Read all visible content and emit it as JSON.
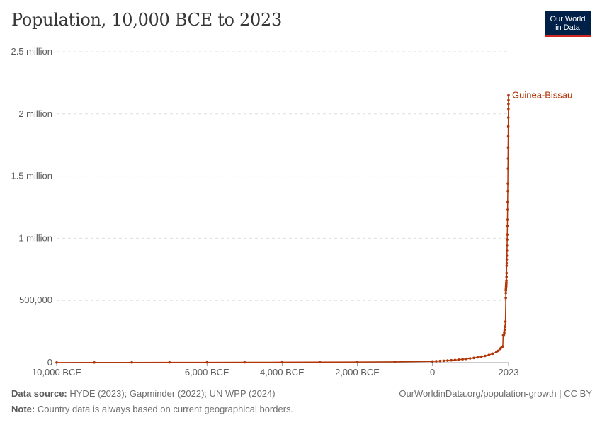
{
  "header": {
    "title": "Population, 10,000 BCE to 2023",
    "logo_line1": "Our World",
    "logo_line2": "in Data"
  },
  "footer": {
    "source_label": "Data source:",
    "source_text": "HYDE (2023); Gapminder (2022); UN WPP (2024)",
    "credit": "OurWorldinData.org/population-growth | CC BY",
    "note_label": "Note:",
    "note_text": "Country data is always based on current geographical borders."
  },
  "chart_data": {
    "type": "line",
    "title": "Population, 10,000 BCE to 2023",
    "xlabel": "",
    "ylabel": "",
    "xlim": [
      -10000,
      2023
    ],
    "ylim": [
      0,
      2500000
    ],
    "grid": true,
    "y_ticks": [
      {
        "value": 0,
        "label": "0"
      },
      {
        "value": 500000,
        "label": "500,000"
      },
      {
        "value": 1000000,
        "label": "1 million"
      },
      {
        "value": 1500000,
        "label": "1.5 million"
      },
      {
        "value": 2000000,
        "label": "2 million"
      },
      {
        "value": 2500000,
        "label": "2.5 million"
      }
    ],
    "x_ticks": [
      {
        "value": -10000,
        "label": "10,000 BCE"
      },
      {
        "value": -6000,
        "label": "6,000 BCE"
      },
      {
        "value": -4000,
        "label": "4,000 BCE"
      },
      {
        "value": -2000,
        "label": "2,000 BCE"
      },
      {
        "value": 0,
        "label": "0"
      },
      {
        "value": 2023,
        "label": "2023"
      }
    ],
    "series": [
      {
        "name": "Guinea-Bissau",
        "color": "#b13507",
        "points": [
          [
            -10000,
            1000
          ],
          [
            -9000,
            1200
          ],
          [
            -8000,
            1500
          ],
          [
            -7000,
            1800
          ],
          [
            -6000,
            2200
          ],
          [
            -5000,
            2700
          ],
          [
            -4000,
            3300
          ],
          [
            -3000,
            4000
          ],
          [
            -2000,
            5000
          ],
          [
            -1000,
            6500
          ],
          [
            0,
            10000
          ],
          [
            100,
            12000
          ],
          [
            200,
            13500
          ],
          [
            300,
            15000
          ],
          [
            400,
            17000
          ],
          [
            500,
            19000
          ],
          [
            600,
            21000
          ],
          [
            700,
            24000
          ],
          [
            800,
            27000
          ],
          [
            900,
            30000
          ],
          [
            1000,
            34000
          ],
          [
            1100,
            38000
          ],
          [
            1200,
            43000
          ],
          [
            1300,
            48000
          ],
          [
            1400,
            54000
          ],
          [
            1500,
            62000
          ],
          [
            1600,
            72000
          ],
          [
            1700,
            85000
          ],
          [
            1750,
            95000
          ],
          [
            1800,
            110000
          ],
          [
            1820,
            118000
          ],
          [
            1850,
            125000
          ],
          [
            1870,
            130000
          ],
          [
            1880,
            220000
          ],
          [
            1890,
            215000
          ],
          [
            1900,
            225000
          ],
          [
            1910,
            240000
          ],
          [
            1920,
            260000
          ],
          [
            1930,
            290000
          ],
          [
            1940,
            330000
          ],
          [
            1950,
            520000
          ],
          [
            1951,
            560000
          ],
          [
            1952,
            580000
          ],
          [
            1953,
            590000
          ],
          [
            1955,
            600000
          ],
          [
            1958,
            610000
          ],
          [
            1960,
            616000
          ],
          [
            1962,
            630000
          ],
          [
            1964,
            640000
          ],
          [
            1965,
            645000
          ],
          [
            1968,
            660000
          ],
          [
            1970,
            690000
          ],
          [
            1972,
            720000
          ],
          [
            1974,
            780000
          ],
          [
            1975,
            800000
          ],
          [
            1978,
            830000
          ],
          [
            1980,
            860000
          ],
          [
            1983,
            900000
          ],
          [
            1985,
            940000
          ],
          [
            1988,
            990000
          ],
          [
            1990,
            1030000
          ],
          [
            1993,
            1100000
          ],
          [
            1995,
            1150000
          ],
          [
            1998,
            1230000
          ],
          [
            2000,
            1290000
          ],
          [
            2003,
            1380000
          ],
          [
            2005,
            1440000
          ],
          [
            2008,
            1560000
          ],
          [
            2010,
            1640000
          ],
          [
            2012,
            1730000
          ],
          [
            2014,
            1820000
          ],
          [
            2016,
            1900000
          ],
          [
            2018,
            1970000
          ],
          [
            2020,
            2040000
          ],
          [
            2021,
            2080000
          ],
          [
            2022,
            2110000
          ],
          [
            2023,
            2150000
          ]
        ]
      }
    ]
  }
}
